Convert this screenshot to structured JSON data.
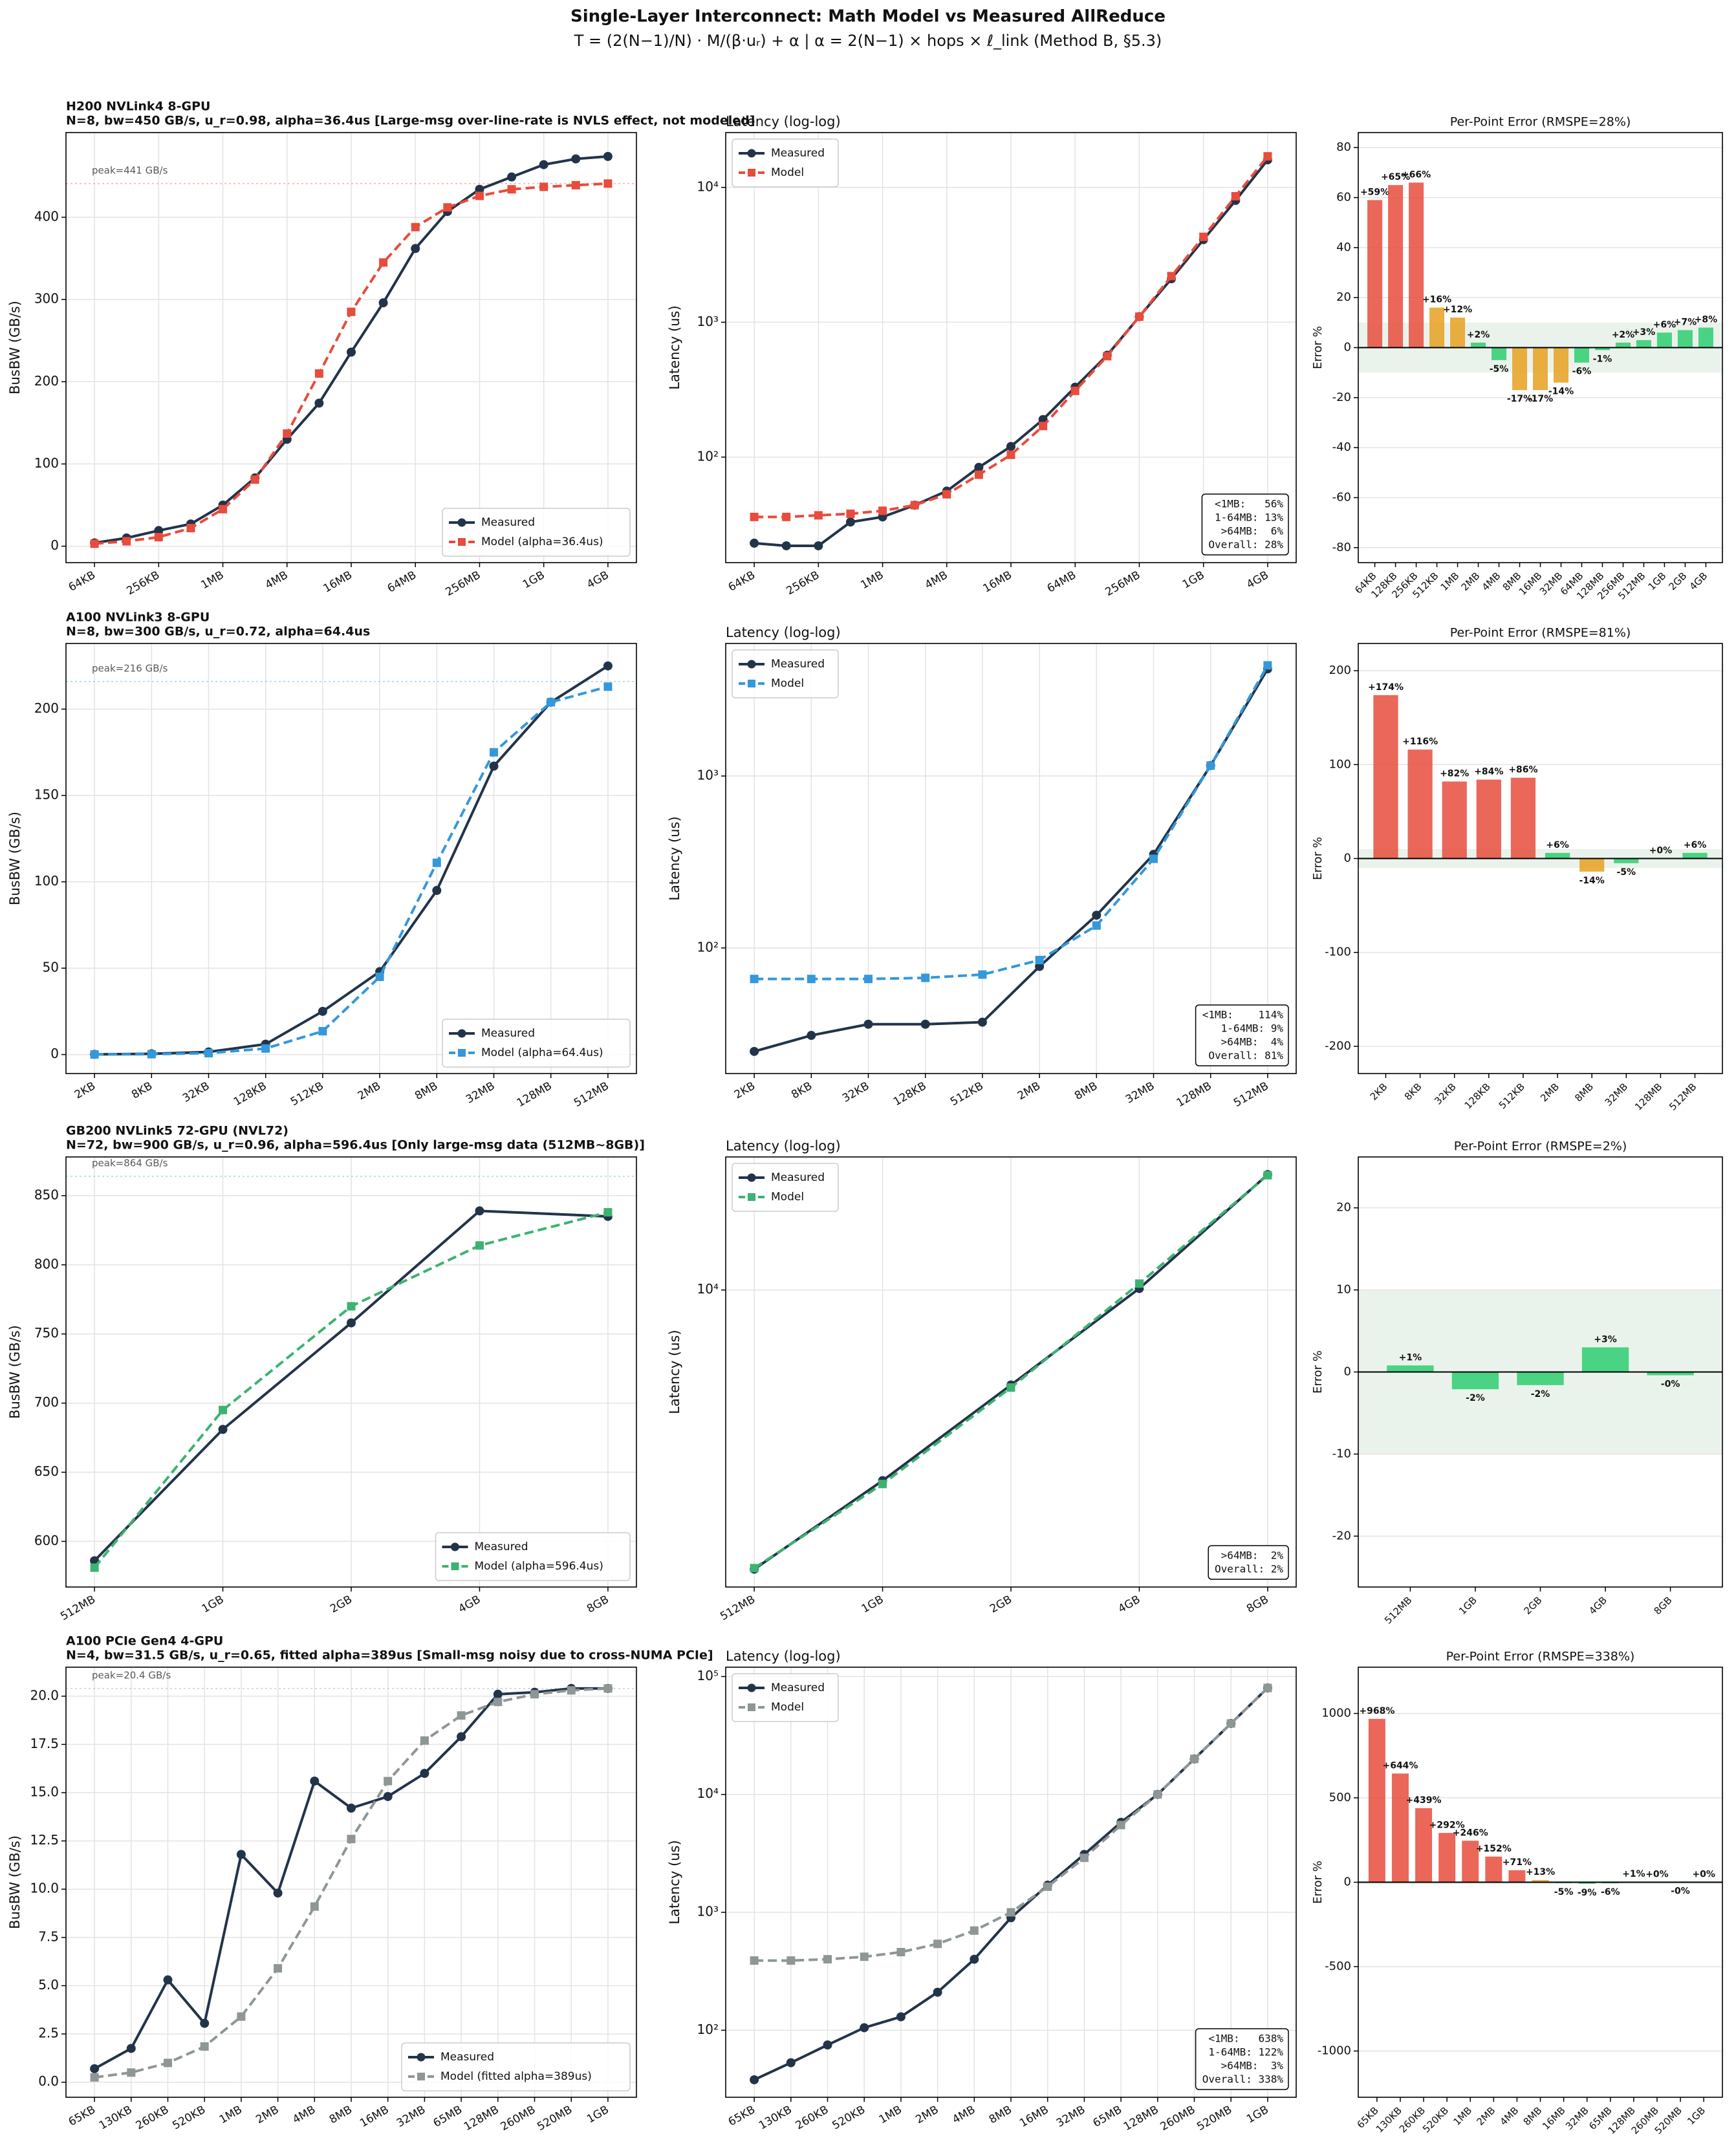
{
  "title": "Single-Layer Interconnect: Math Model vs Measured AllReduce",
  "subtitle": "T = (2(N−1)/N) · M/(β·uᵣ) + α   |   α = 2(N−1) × hops × ℓ_link   (Method B, §5.3)",
  "chart_data": [
    {
      "type": "line",
      "title": "H200 NVLink4 8-GPU",
      "subtitle": "N=8, bw=450 GB/s, u_r=0.98, alpha=36.4us  [Large-msg over-line-rate is NVLS effect, not modeled]",
      "ylabel": "BusBW (GB/s)",
      "categories": [
        "64KB",
        null,
        "256KB",
        null,
        "1MB",
        null,
        "4MB",
        null,
        "16MB",
        null,
        "64MB",
        null,
        "256MB",
        null,
        "1GB",
        null,
        "4GB"
      ],
      "series": [
        {
          "name": "Measured",
          "color": "#22344a",
          "marker": "circle",
          "dashed": false,
          "values": [
            4,
            10,
            19,
            27,
            50,
            83,
            130,
            174,
            236,
            296,
            362,
            407,
            434,
            449,
            464,
            471,
            474
          ]
        },
        {
          "name": "Model (alpha=36.4us)",
          "color": "#e74c3c",
          "marker": "square",
          "dashed": true,
          "values": [
            3,
            6,
            11,
            22,
            45,
            81,
            137,
            210,
            285,
            345,
            388,
            412,
            426,
            434,
            437,
            439,
            441
          ]
        }
      ],
      "ylim": [
        -20,
        503
      ],
      "yticks": [
        0,
        100,
        200,
        300,
        400
      ],
      "grid": true,
      "legend": "lower right",
      "annotation": {
        "text": "peak=441 GB/s",
        "value": 441
      }
    },
    {
      "type": "line",
      "title": "Latency (log-log)",
      "ylabel": "Latency (us)",
      "log": true,
      "categories": [
        "64KB",
        null,
        "256KB",
        null,
        "1MB",
        null,
        "4MB",
        null,
        "16MB",
        null,
        "64MB",
        null,
        "256MB",
        null,
        "1GB",
        null,
        "4GB"
      ],
      "series": [
        {
          "name": "Measured",
          "color": "#22344a",
          "marker": "circle",
          "dashed": false,
          "values": [
            23,
            22,
            22,
            33,
            36,
            44,
            56,
            84,
            120,
            190,
            330,
            570,
            1100,
            2100,
            4100,
            8000,
            16000
          ]
        },
        {
          "name": "Model",
          "color": "#e74c3c",
          "marker": "square",
          "dashed": true,
          "values": [
            36,
            36,
            37,
            38,
            40,
            44,
            53,
            74,
            104,
            170,
            310,
            560,
            1100,
            2200,
            4300,
            8600,
            17000
          ]
        }
      ],
      "ylim": [
        16.5,
        25500
      ],
      "yticks": [
        {
          "value": 100,
          "label": "10²"
        },
        {
          "value": 1000,
          "label": "10³"
        },
        {
          "value": 10000,
          "label": "10⁴"
        }
      ],
      "grid": true,
      "legend": "upper left",
      "stats": [
        "<1MB:   56%",
        " 1-64MB: 13%",
        " >64MB:  6%",
        "Overall: 28%"
      ]
    },
    {
      "type": "bar",
      "title": "Per-Point Error  (RMSPE=28%)",
      "ylabel": "Error %",
      "categories": [
        "64KB",
        "128KB",
        "256KB",
        "512KB",
        "1MB",
        "2MB",
        "4MB",
        "8MB",
        "16MB",
        "32MB",
        "64MB",
        "128MB",
        "256MB",
        "512MB",
        "1GB",
        "2GB",
        "4GB"
      ],
      "values": [
        59,
        65,
        66,
        16,
        12,
        2,
        -5,
        -17,
        -17,
        -14,
        -6,
        -1,
        2,
        3,
        6,
        7,
        8
      ],
      "value_labels": [
        "+59%",
        "+65%",
        "+66%",
        "+16%",
        "+12%",
        "+2%",
        "-5%",
        "-17%",
        "-17%",
        "-14%",
        "-6%",
        "-1%",
        "+2%",
        "+3%",
        "+6%",
        "+7%",
        "+8%"
      ],
      "colors": [
        "#e74c3c",
        "#e74c3c",
        "#e74c3c",
        "#e6a020",
        "#e6a020",
        "#2ecc71",
        "#2ecc71",
        "#e6a020",
        "#e6a020",
        "#e6a020",
        "#2ecc71",
        "#2ecc71",
        "#2ecc71",
        "#2ecc71",
        "#2ecc71",
        "#2ecc71",
        "#2ecc71"
      ],
      "ylim": [
        -86,
        86
      ],
      "yticks": [
        -80,
        -60,
        -40,
        -20,
        0,
        20,
        40,
        60,
        80
      ],
      "grid": true,
      "band": [
        -10,
        10
      ]
    },
    {
      "type": "line",
      "title": "A100 NVLink3 8-GPU",
      "subtitle": "N=8, bw=300 GB/s, u_r=0.72, alpha=64.4us",
      "ylabel": "BusBW (GB/s)",
      "categories": [
        "2KB",
        "8KB",
        "32KB",
        "128KB",
        "512KB",
        "2MB",
        "8MB",
        "32MB",
        "128MB",
        "512MB"
      ],
      "series": [
        {
          "name": "Measured",
          "color": "#22344a",
          "marker": "circle",
          "dashed": false,
          "values": [
            0.1,
            0.4,
            1.5,
            6,
            25,
            48,
            95,
            167,
            204,
            225
          ]
        },
        {
          "name": "Model (alpha=64.4us)",
          "color": "#3498db",
          "marker": "square",
          "dashed": true,
          "values": [
            0.05,
            0.2,
            0.8,
            3.5,
            13.5,
            45,
            111,
            175,
            204,
            213
          ]
        }
      ],
      "ylim": [
        -11,
        238
      ],
      "yticks": [
        0,
        50,
        100,
        150,
        200
      ],
      "grid": true,
      "legend": "lower right",
      "annotation": {
        "text": "peak=216 GB/s",
        "value": 216
      }
    },
    {
      "type": "line",
      "title": "Latency (log-log)",
      "ylabel": "Latency (us)",
      "log": true,
      "categories": [
        "2KB",
        "8KB",
        "32KB",
        "128KB",
        "512KB",
        "2MB",
        "8MB",
        "32MB",
        "128MB",
        "512MB"
      ],
      "series": [
        {
          "name": "Measured",
          "color": "#22344a",
          "marker": "circle",
          "dashed": false,
          "values": [
            25,
            31,
            36,
            36,
            37,
            78,
            155,
            350,
            1150,
            4200
          ]
        },
        {
          "name": "Model",
          "color": "#3498db",
          "marker": "square",
          "dashed": true,
          "values": [
            66,
            66,
            66,
            67,
            70,
            85,
            135,
            330,
            1150,
            4400
          ]
        }
      ],
      "ylim": [
        18.6,
        5900
      ],
      "yticks": [
        {
          "value": 100,
          "label": "10²"
        },
        {
          "value": 1000,
          "label": "10³"
        }
      ],
      "grid": true,
      "legend": "upper left",
      "stats": [
        "<1MB:    114%",
        " 1-64MB: 9%",
        " >64MB:  4%",
        "Overall: 81%"
      ]
    },
    {
      "type": "bar",
      "title": "Per-Point Error  (RMSPE=81%)",
      "ylabel": "Error %",
      "categories": [
        "2KB",
        "8KB",
        "32KB",
        "128KB",
        "512KB",
        "2MB",
        "8MB",
        "32MB",
        "128MB",
        "512MB"
      ],
      "values": [
        174,
        116,
        82,
        84,
        86,
        6,
        -14,
        -5,
        0,
        6
      ],
      "value_labels": [
        "+174%",
        "+116%",
        "+82%",
        "+84%",
        "+86%",
        "+6%",
        "-14%",
        "-5%",
        "+0%",
        "+6%"
      ],
      "colors": [
        "#e74c3c",
        "#e74c3c",
        "#e74c3c",
        "#e74c3c",
        "#e74c3c",
        "#2ecc71",
        "#e6a020",
        "#2ecc71",
        "#2ecc71",
        "#2ecc71"
      ],
      "ylim": [
        -229,
        229
      ],
      "yticks": [
        -200,
        -100,
        0,
        100,
        200
      ],
      "grid": true,
      "band": [
        -10,
        10
      ]
    },
    {
      "type": "line",
      "title": "GB200 NVLink5 72-GPU (NVL72)",
      "subtitle": "N=72, bw=900 GB/s, u_r=0.96, alpha=596.4us  [Only large-msg data (512MB~8GB)]",
      "ylabel": "BusBW (GB/s)",
      "categories": [
        "512MB",
        "1GB",
        "2GB",
        "4GB",
        "8GB"
      ],
      "series": [
        {
          "name": "Measured",
          "color": "#22344a",
          "marker": "circle",
          "dashed": false,
          "values": [
            586,
            681,
            758,
            839,
            835
          ]
        },
        {
          "name": "Model (alpha=596.4us)",
          "color": "#3cb371",
          "marker": "square",
          "dashed": true,
          "values": [
            581,
            695,
            770,
            814,
            838
          ]
        }
      ],
      "ylim": [
        567,
        878
      ],
      "yticks": [
        600,
        650,
        700,
        750,
        800,
        850
      ],
      "grid": true,
      "legend": "lower right",
      "annotation": {
        "text": "peak=864 GB/s",
        "value": 864
      }
    },
    {
      "type": "line",
      "title": "Latency (log-log)",
      "ylabel": "Latency (us)",
      "log": true,
      "categories": [
        "512MB",
        "1GB",
        "2GB",
        "4GB",
        "8GB"
      ],
      "series": [
        {
          "name": "Measured",
          "color": "#22344a",
          "marker": "circle",
          "dashed": false,
          "values": [
            1807,
            3109,
            5587,
            10094,
            20287
          ]
        },
        {
          "name": "Model",
          "color": "#3cb371",
          "marker": "square",
          "dashed": true,
          "values": [
            1819,
            3046,
            5500,
            10400,
            20210
          ]
        }
      ],
      "ylim": [
        1620,
        22600
      ],
      "yticks": [
        {
          "value": 10000,
          "label": "10⁴"
        }
      ],
      "grid": true,
      "legend": "upper left",
      "stats": [
        ">64MB:  2%",
        "Overall: 2%"
      ]
    },
    {
      "type": "bar",
      "title": "Per-Point Error  (RMSPE=2%)",
      "ylabel": "Error %",
      "categories": [
        "512MB",
        "1GB",
        "2GB",
        "4GB",
        "8GB"
      ],
      "values": [
        0.8,
        -2.1,
        -1.6,
        3.0,
        -0.4
      ],
      "value_labels": [
        "+1%",
        "-2%",
        "-2%",
        "+3%",
        "-0%"
      ],
      "colors": [
        "#2ecc71",
        "#2ecc71",
        "#2ecc71",
        "#2ecc71",
        "#2ecc71"
      ],
      "ylim": [
        -26.2,
        26.2
      ],
      "yticks": [
        -20,
        -10,
        0,
        10,
        20
      ],
      "grid": true,
      "band": [
        -10,
        10
      ]
    },
    {
      "type": "line",
      "title": "A100 PCIe Gen4 4-GPU",
      "subtitle": "N=4, bw=31.5 GB/s, u_r=0.65, fitted alpha=389us  [Small-msg noisy due to cross-NUMA PCIe]",
      "ylabel": "BusBW (GB/s)",
      "categories": [
        "65KB",
        "130KB",
        "260KB",
        "520KB",
        "1MB",
        "2MB",
        "4MB",
        "8MB",
        "16MB",
        "32MB",
        "65MB",
        "128MB",
        "260MB",
        "520MB",
        "1GB"
      ],
      "series": [
        {
          "name": "Measured",
          "color": "#22344a",
          "marker": "circle",
          "dashed": false,
          "values": [
            0.7,
            1.75,
            5.3,
            3.05,
            11.8,
            9.8,
            15.6,
            14.2,
            14.8,
            16.0,
            17.9,
            20.1,
            20.2,
            20.4,
            20.4
          ]
        },
        {
          "name": "Model (fitted alpha=389us)",
          "color": "#8e9696",
          "marker": "square",
          "dashed": true,
          "values": [
            0.25,
            0.5,
            1.0,
            1.85,
            3.4,
            5.9,
            9.1,
            12.6,
            15.6,
            17.7,
            19.0,
            19.7,
            20.1,
            20.3,
            20.4
          ]
        }
      ],
      "ylim": [
        -0.78,
        21.5
      ],
      "yticks": [
        {
          "value": 0,
          "label": "0.0"
        },
        2.5,
        {
          "value": 5,
          "label": "5.0"
        },
        7.5,
        {
          "value": 10,
          "label": "10.0"
        },
        12.5,
        {
          "value": 15,
          "label": "15.0"
        },
        17.5,
        {
          "value": 20,
          "label": "20.0"
        }
      ],
      "grid": true,
      "legend": "lower right",
      "annotation": {
        "text": "peak=20.4 GB/s",
        "value": 20.4
      }
    },
    {
      "type": "line",
      "title": "Latency (log-log)",
      "ylabel": "Latency (us)",
      "log": true,
      "categories": [
        "65KB",
        "130KB",
        "260KB",
        "520KB",
        "1MB",
        "2MB",
        "4MB",
        "8MB",
        "16MB",
        "32MB",
        "65MB",
        "128MB",
        "260MB",
        "520MB",
        "1GB"
      ],
      "series": [
        {
          "name": "Measured",
          "color": "#22344a",
          "marker": "circle",
          "dashed": false,
          "values": [
            38,
            53,
            75,
            105,
            130,
            210,
            400,
            900,
            1700,
            3100,
            5800,
            10000,
            20000,
            40000,
            80000
          ]
        },
        {
          "name": "Model",
          "color": "#8e9696",
          "marker": "square",
          "dashed": true,
          "values": [
            390,
            390,
            400,
            420,
            460,
            540,
            700,
            1000,
            1650,
            2900,
            5500,
            10000,
            20000,
            40000,
            80000
          ]
        }
      ],
      "ylim": [
        27,
        120000
      ],
      "yticks": [
        {
          "value": 100,
          "label": "10²"
        },
        {
          "value": 1000,
          "label": "10³"
        },
        {
          "value": 10000,
          "label": "10⁴"
        },
        {
          "value": 100000,
          "label": "10⁵"
        }
      ],
      "grid": true,
      "legend": "upper left",
      "stats": [
        "<1MB:   638%",
        " 1-64MB: 122%",
        " >64MB:  3%",
        "Overall: 338%"
      ]
    },
    {
      "type": "bar",
      "title": "Per-Point Error  (RMSPE=338%)",
      "ylabel": "Error %",
      "categories": [
        "65KB",
        "130KB",
        "260KB",
        "520KB",
        "1MB",
        "2MB",
        "4MB",
        "8MB",
        "16MB",
        "32MB",
        "65MB",
        "128MB",
        "260MB",
        "520MB",
        "1GB"
      ],
      "values": [
        968,
        644,
        439,
        292,
        246,
        152,
        71,
        13,
        -5,
        -9,
        -6,
        1,
        0,
        -0.2,
        0.1
      ],
      "value_labels": [
        "+968%",
        "+644%",
        "+439%",
        "+292%",
        "+246%",
        "+152%",
        "+71%",
        "+13%",
        "-5%",
        "-9%",
        "-6%",
        "+1%",
        "+0%",
        "-0%",
        "+0%"
      ],
      "colors": [
        "#e74c3c",
        "#e74c3c",
        "#e74c3c",
        "#e74c3c",
        "#e74c3c",
        "#e74c3c",
        "#e74c3c",
        "#e6a020",
        "#2ecc71",
        "#2ecc71",
        "#2ecc71",
        "#2ecc71",
        "#2ecc71",
        "#2ecc71",
        "#2ecc71"
      ],
      "ylim": [
        -1274,
        1274
      ],
      "yticks": [
        -1000,
        -500,
        0,
        500,
        1000
      ],
      "grid": true,
      "band": [
        -10,
        10
      ]
    }
  ]
}
